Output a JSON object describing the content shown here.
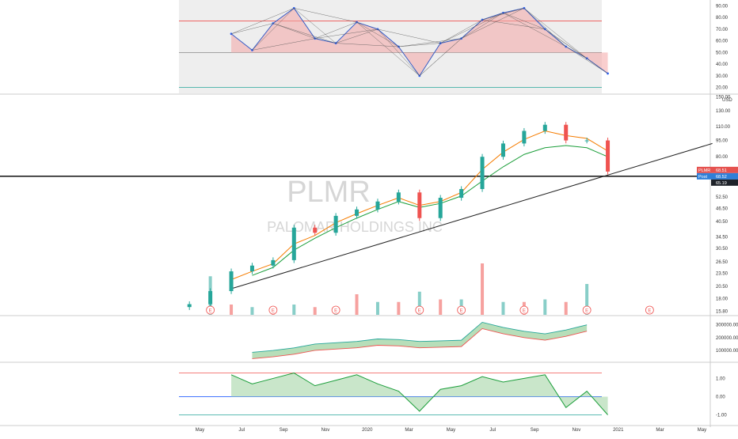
{
  "colors": {
    "background": "#ffffff",
    "shade": "#eeeeee",
    "grid": "#dddddd",
    "separator": "#cccccc",
    "up": "#26a69a",
    "down": "#ef5350",
    "price_line": "#222222",
    "ma_fast": "#f57c00",
    "ma_slow": "#1b9e3a",
    "osc_line": "#2962ff",
    "fill_up": "#a5d6a7",
    "fill_down": "#f4a6a6",
    "label_bg_red": "#e5524f",
    "label_bg_blue": "#2f7fd8",
    "label_bg_dark": "#1e2229",
    "watermark": "#d6d6d6"
  },
  "watermark": {
    "symbol": "PLMR",
    "name": "PALOMAR HOLDINGS INC"
  },
  "price_labels": {
    "currency": "USD",
    "symbol_tag": "PLMR",
    "last": "68.51",
    "pre_tag": "Post",
    "pre": "68.52",
    "line_value": "65.19"
  },
  "events": {
    "earnings_letter": "E",
    "months": [
      "2019-05",
      "2019-08",
      "2019-11",
      "2020-03",
      "2020-05",
      "2020-08",
      "2020-11",
      "2021-02"
    ]
  },
  "chart_data": [
    {
      "type": "line",
      "panel": "oscillator-top",
      "y_ticks": [
        "90.00",
        "80.00",
        "70.00",
        "60.00",
        "50.00",
        "40.00",
        "30.00",
        "20.00"
      ],
      "ylim": [
        15,
        95
      ],
      "reference_lines": [
        77,
        50,
        20
      ],
      "x_ticks": [
        "May",
        "Jul",
        "Sep",
        "Nov",
        "2020",
        "Mar",
        "May",
        "Jul",
        "Sep",
        "Nov",
        "2021",
        "Mar",
        "May"
      ],
      "x": [
        "2019-05",
        "2019-06",
        "2019-07",
        "2019-08",
        "2019-09",
        "2019-10",
        "2019-11",
        "2019-12",
        "2020-01",
        "2020-02",
        "2020-03",
        "2020-04",
        "2020-05",
        "2020-06",
        "2020-07",
        "2020-08",
        "2020-09",
        "2020-10",
        "2020-11",
        "2020-12"
      ],
      "series": [
        {
          "values": [
            null,
            66,
            52,
            75,
            88,
            62,
            58,
            76,
            70,
            55,
            30,
            58,
            62,
            78,
            84,
            88,
            70,
            55,
            45,
            32
          ]
        }
      ]
    },
    {
      "type": "candlestick",
      "panel": "price",
      "y_ticks": [
        "150.00",
        "130.00",
        "110.00",
        "95.00",
        "80.00",
        "68.51",
        "65.19",
        "52.50",
        "46.50",
        "40.50",
        "34.50",
        "30.50",
        "26.50",
        "23.50",
        "20.50",
        "18.00",
        "15.80"
      ],
      "y_scale": "log",
      "ylim": [
        15.2,
        152
      ],
      "x": [
        "2019-04",
        "2019-05",
        "2019-06",
        "2019-07",
        "2019-08",
        "2019-09",
        "2019-10",
        "2019-11",
        "2019-12",
        "2020-01",
        "2020-02",
        "2020-03",
        "2020-04",
        "2020-05",
        "2020-06",
        "2020-07",
        "2020-08",
        "2020-09",
        "2020-10",
        "2020-11",
        "2020-12"
      ],
      "series": [
        {
          "name": "close",
          "values": [
            17,
            19.5,
            24,
            25.5,
            27,
            38,
            36,
            43,
            46,
            50,
            55,
            42,
            52,
            57,
            80,
            92,
            105,
            112,
            95,
            95,
            68.5
          ]
        },
        {
          "name": "ma-fast",
          "values": [
            null,
            null,
            22,
            24,
            26,
            32,
            35,
            40,
            44,
            48,
            52,
            48,
            50,
            55,
            70,
            84,
            96,
            105,
            100,
            97,
            85
          ]
        },
        {
          "name": "ma-slow",
          "values": [
            null,
            null,
            null,
            23,
            25,
            30,
            34,
            38,
            42,
            46,
            50,
            47,
            49,
            53,
            62,
            72,
            82,
            88,
            90,
            88,
            80
          ]
        }
      ],
      "trend_lines": [
        {
          "from": [
            "2019-06",
            20
          ],
          "to": [
            "2021-05",
            92
          ]
        },
        {
          "from": [
            "2019-04",
            65.19
          ],
          "to": [
            "2021-05",
            65.19
          ]
        }
      ],
      "volume": {
        "x": [
          "2019-05",
          "2019-06",
          "2019-07",
          "2019-08",
          "2019-09",
          "2019-10",
          "2019-11",
          "2019-12",
          "2020-01",
          "2020-02",
          "2020-03",
          "2020-04",
          "2020-05",
          "2020-06",
          "2020-07",
          "2020-08",
          "2020-09",
          "2020-10",
          "2020-11"
        ],
        "values": [
          1.5,
          0.4,
          0.3,
          0.3,
          0.4,
          0.3,
          0.3,
          0.8,
          0.5,
          0.5,
          0.9,
          0.6,
          0.6,
          2.0,
          0.5,
          0.5,
          0.6,
          0.5,
          1.2
        ]
      }
    },
    {
      "type": "area",
      "panel": "indicator-middle",
      "y_ticks": [
        "300000.00",
        "200000.00",
        "100000.00"
      ],
      "ylim": [
        20000,
        360000
      ],
      "x": [
        "2019-07",
        "2019-08",
        "2019-09",
        "2019-10",
        "2019-11",
        "2019-12",
        "2020-01",
        "2020-02",
        "2020-03",
        "2020-04",
        "2020-05",
        "2020-06",
        "2020-07",
        "2020-08",
        "2020-09",
        "2020-10",
        "2020-11"
      ],
      "series": [
        {
          "values": [
            85000,
            100000,
            120000,
            150000,
            160000,
            170000,
            190000,
            185000,
            170000,
            175000,
            180000,
            320000,
            280000,
            250000,
            230000,
            260000,
            300000
          ]
        }
      ]
    },
    {
      "type": "line",
      "panel": "oscillator-bottom",
      "y_ticks": [
        "1.00",
        "0.00",
        "-1.00"
      ],
      "ylim": [
        -1.5,
        1.8
      ],
      "reference_lines": [
        1.3,
        0,
        -1.0
      ],
      "x": [
        "2019-06",
        "2019-07",
        "2019-08",
        "2019-09",
        "2019-10",
        "2019-11",
        "2019-12",
        "2020-01",
        "2020-02",
        "2020-03",
        "2020-04",
        "2020-05",
        "2020-06",
        "2020-07",
        "2020-08",
        "2020-09",
        "2020-10",
        "2020-11",
        "2020-12"
      ],
      "series": [
        {
          "values": [
            1.2,
            0.7,
            1.0,
            1.3,
            0.6,
            0.9,
            1.2,
            0.7,
            0.3,
            -0.8,
            0.4,
            0.6,
            1.1,
            0.8,
            1.0,
            1.2,
            -0.6,
            0.3,
            -1.0
          ]
        }
      ]
    }
  ]
}
